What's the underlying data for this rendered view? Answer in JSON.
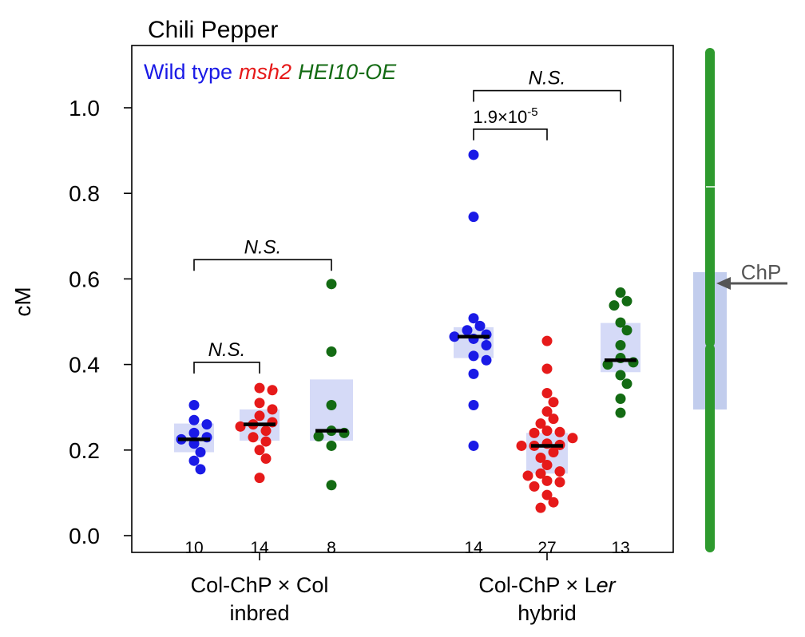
{
  "chart_data": {
    "type": "scatter",
    "title": "Chili Pepper",
    "ylabel": "cM",
    "ylim": [
      0,
      1.1
    ],
    "yticks": [
      0.0,
      0.2,
      0.4,
      0.6,
      0.8,
      1.0
    ],
    "ytick_labels": [
      "0.0",
      "0.2",
      "0.4",
      "0.6",
      "0.8",
      "1.0"
    ],
    "legend": {
      "placement": "top-left",
      "items": [
        {
          "label": "Wild type",
          "color": "#1a1ae6",
          "italic": false
        },
        {
          "label": "msh2",
          "color": "#e61a1a",
          "italic": true
        },
        {
          "label": "HEI10-OE",
          "color": "#136b13",
          "italic": true
        }
      ]
    },
    "group_labels": [
      {
        "line1": "Col-ChP × Col",
        "line2": "inbred"
      },
      {
        "line1_prefix": "Col-ChP × L",
        "line1_italic": "er",
        "line2": "hybrid"
      }
    ],
    "series": [
      {
        "name": "Wild type",
        "group": "inbred",
        "color": "#1a1ae6",
        "n": "10",
        "median": 0.225,
        "iqr": [
          0.195,
          0.262
        ],
        "values": [
          0.305,
          0.27,
          0.26,
          0.24,
          0.23,
          0.225,
          0.215,
          0.195,
          0.175,
          0.155
        ]
      },
      {
        "name": "msh2",
        "group": "inbred",
        "color": "#e61a1a",
        "n": "14",
        "median": 0.26,
        "iqr": [
          0.222,
          0.295
        ],
        "values": [
          0.345,
          0.34,
          0.31,
          0.295,
          0.28,
          0.265,
          0.26,
          0.255,
          0.245,
          0.23,
          0.22,
          0.2,
          0.18,
          0.135
        ]
      },
      {
        "name": "HEI10-OE",
        "group": "inbred",
        "color": "#136b13",
        "n": "8",
        "median": 0.245,
        "iqr": [
          0.222,
          0.365
        ],
        "values": [
          0.588,
          0.43,
          0.305,
          0.245,
          0.24,
          0.232,
          0.21,
          0.118
        ]
      },
      {
        "name": "Wild type",
        "group": "hybrid",
        "color": "#1a1ae6",
        "n": "14",
        "median": 0.465,
        "iqr": [
          0.415,
          0.487
        ],
        "values": [
          0.89,
          0.745,
          0.508,
          0.49,
          0.48,
          0.47,
          0.465,
          0.46,
          0.445,
          0.42,
          0.41,
          0.378,
          0.305,
          0.21
        ]
      },
      {
        "name": "msh2",
        "group": "hybrid",
        "color": "#e61a1a",
        "n": "27",
        "median": 0.21,
        "iqr": [
          0.145,
          0.24
        ],
        "values": [
          0.455,
          0.39,
          0.333,
          0.312,
          0.29,
          0.273,
          0.262,
          0.245,
          0.242,
          0.24,
          0.228,
          0.215,
          0.212,
          0.21,
          0.21,
          0.195,
          0.182,
          0.165,
          0.15,
          0.145,
          0.14,
          0.128,
          0.125,
          0.115,
          0.095,
          0.078,
          0.065
        ]
      },
      {
        "name": "HEI10-OE",
        "group": "hybrid",
        "color": "#136b13",
        "n": "13",
        "median": 0.41,
        "iqr": [
          0.382,
          0.497
        ],
        "values": [
          0.568,
          0.548,
          0.538,
          0.498,
          0.48,
          0.445,
          0.415,
          0.405,
          0.4,
          0.375,
          0.355,
          0.32,
          0.287
        ]
      }
    ],
    "annotations": [
      {
        "label": "N.S.",
        "italic": true,
        "from": 0,
        "to": 2,
        "level": 0.645
      },
      {
        "label": "N.S.",
        "italic": true,
        "from": 0,
        "to": 1,
        "level": 0.405
      },
      {
        "label": "N.S.",
        "italic": true,
        "from": 3,
        "to": 5,
        "level": 1.04
      },
      {
        "label_base": "1.9×10",
        "label_exp": "-5",
        "italic": false,
        "from": 3,
        "to": 4,
        "level": 0.95
      }
    ],
    "chromosome": {
      "color": "#2e9a2e",
      "label": "ChP",
      "highlight_color": "#b7c4ea"
    }
  }
}
